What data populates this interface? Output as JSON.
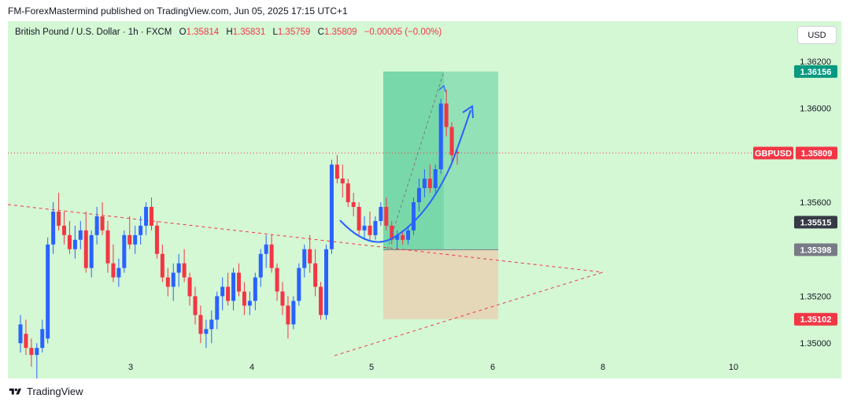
{
  "header": {
    "text": "FM-ForexMastermind published on TradingView.com, Jun 05, 2025 17:15 UTC+1"
  },
  "legend": {
    "symbol": "British Pound / U.S. Dollar · 1h · FXCM",
    "o_label": "O",
    "o": "1.35814",
    "h_label": "H",
    "h": "1.35831",
    "l_label": "L",
    "l": "1.35759",
    "c_label": "C",
    "c": "1.35809",
    "change": "−0.00005 (−0.00%)"
  },
  "currency_button": "USD",
  "price_labels": {
    "target": "1.36156",
    "symbol_tag": "GBPUSD",
    "current": "1.35809",
    "mid": "1.35515",
    "entry": "1.35398",
    "stop": "1.35102"
  },
  "footer": {
    "brand": "TradingView"
  },
  "colors": {
    "background": "#d4f7d4",
    "up": "#2962ff",
    "down": "#f23645",
    "profit_zone": "#7ed9ae",
    "loss_zone": "#e5d4b6",
    "trendline": "#f23645",
    "arrow": "#2962ff"
  },
  "chart_data": {
    "type": "candlestick",
    "symbol": "GBPUSD",
    "timeframe": "1h",
    "x_ticks": [
      "3",
      "4",
      "5",
      "6",
      "8",
      "10"
    ],
    "y_ticks": [
      "1.36200",
      "1.36000",
      "1.35600",
      "1.35200",
      "1.35000"
    ],
    "y_tick_values": [
      1.362,
      1.36,
      1.356,
      1.352,
      1.35
    ],
    "ylim": [
      1.3485,
      1.3637
    ],
    "current_price": 1.35809,
    "position": {
      "entry": 1.35398,
      "target": 1.36156,
      "stop": 1.35102
    },
    "candles_ohlc": [
      [
        1.35,
        1.3512,
        1.3496,
        1.3508
      ],
      [
        1.3504,
        1.351,
        1.3495,
        1.3498
      ],
      [
        1.3498,
        1.3502,
        1.349,
        1.3495
      ],
      [
        1.3495,
        1.35,
        1.3485,
        1.3498
      ],
      [
        1.3498,
        1.351,
        1.3496,
        1.3506
      ],
      [
        1.3502,
        1.3545,
        1.35,
        1.3542
      ],
      [
        1.3542,
        1.356,
        1.3538,
        1.3556
      ],
      [
        1.3556,
        1.3564,
        1.3548,
        1.355
      ],
      [
        1.355,
        1.3556,
        1.3542,
        1.3546
      ],
      [
        1.3546,
        1.3552,
        1.3538,
        1.354
      ],
      [
        1.354,
        1.355,
        1.3536,
        1.3544
      ],
      [
        1.3544,
        1.3552,
        1.354,
        1.3548
      ],
      [
        1.3548,
        1.3556,
        1.353,
        1.3532
      ],
      [
        1.3532,
        1.3548,
        1.3528,
        1.3546
      ],
      [
        1.3546,
        1.3558,
        1.3542,
        1.3554
      ],
      [
        1.3554,
        1.356,
        1.3546,
        1.3548
      ],
      [
        1.3548,
        1.3552,
        1.353,
        1.3534
      ],
      [
        1.3534,
        1.3542,
        1.3526,
        1.3528
      ],
      [
        1.3528,
        1.3536,
        1.3524,
        1.3532
      ],
      [
        1.3532,
        1.3548,
        1.353,
        1.3546
      ],
      [
        1.3546,
        1.3554,
        1.354,
        1.3542
      ],
      [
        1.3542,
        1.355,
        1.3538,
        1.3546
      ],
      [
        1.3546,
        1.3554,
        1.3542,
        1.355
      ],
      [
        1.355,
        1.356,
        1.3546,
        1.3558
      ],
      [
        1.3558,
        1.3562,
        1.3548,
        1.355
      ],
      [
        1.355,
        1.3552,
        1.3536,
        1.3538
      ],
      [
        1.3538,
        1.3542,
        1.3526,
        1.3528
      ],
      [
        1.3528,
        1.3532,
        1.352,
        1.3524
      ],
      [
        1.3524,
        1.3534,
        1.3518,
        1.353
      ],
      [
        1.353,
        1.3538,
        1.3524,
        1.3534
      ],
      [
        1.3534,
        1.354,
        1.3526,
        1.3528
      ],
      [
        1.3528,
        1.353,
        1.3516,
        1.352
      ],
      [
        1.352,
        1.3524,
        1.3508,
        1.3512
      ],
      [
        1.3512,
        1.3516,
        1.35,
        1.3504
      ],
      [
        1.3504,
        1.351,
        1.3498,
        1.3506
      ],
      [
        1.3506,
        1.3514,
        1.35,
        1.351
      ],
      [
        1.351,
        1.3522,
        1.3506,
        1.352
      ],
      [
        1.352,
        1.3528,
        1.3514,
        1.3524
      ],
      [
        1.3524,
        1.353,
        1.3516,
        1.3518
      ],
      [
        1.3518,
        1.3532,
        1.3514,
        1.353
      ],
      [
        1.353,
        1.3534,
        1.352,
        1.3522
      ],
      [
        1.3522,
        1.3526,
        1.3512,
        1.3516
      ],
      [
        1.3516,
        1.3522,
        1.3512,
        1.3518
      ],
      [
        1.3518,
        1.353,
        1.3514,
        1.3528
      ],
      [
        1.3528,
        1.354,
        1.3524,
        1.3538
      ],
      [
        1.3538,
        1.3546,
        1.3532,
        1.3542
      ],
      [
        1.3542,
        1.3546,
        1.353,
        1.3532
      ],
      [
        1.3532,
        1.3534,
        1.3518,
        1.3522
      ],
      [
        1.3522,
        1.3526,
        1.3512,
        1.3516
      ],
      [
        1.3516,
        1.352,
        1.3502,
        1.3508
      ],
      [
        1.3508,
        1.352,
        1.3506,
        1.3518
      ],
      [
        1.3518,
        1.3534,
        1.3516,
        1.3532
      ],
      [
        1.3532,
        1.3542,
        1.3528,
        1.354
      ],
      [
        1.354,
        1.3546,
        1.353,
        1.3534
      ],
      [
        1.3534,
        1.354,
        1.352,
        1.3524
      ],
      [
        1.3524,
        1.3526,
        1.351,
        1.3512
      ],
      [
        1.3512,
        1.3542,
        1.351,
        1.354
      ],
      [
        1.354,
        1.3578,
        1.3538,
        1.3576
      ],
      [
        1.3576,
        1.358,
        1.3568,
        1.357
      ],
      [
        1.357,
        1.3576,
        1.3562,
        1.3568
      ],
      [
        1.3568,
        1.357,
        1.3558,
        1.356
      ],
      [
        1.356,
        1.3564,
        1.3554,
        1.3558
      ],
      [
        1.3558,
        1.356,
        1.3546,
        1.3548
      ],
      [
        1.3548,
        1.3554,
        1.3544,
        1.355
      ],
      [
        1.355,
        1.3556,
        1.3544,
        1.3546
      ],
      [
        1.3546,
        1.3554,
        1.3544,
        1.3552
      ],
      [
        1.3552,
        1.356,
        1.355,
        1.3558
      ],
      [
        1.3558,
        1.3562,
        1.3548,
        1.355
      ],
      [
        1.355,
        1.3552,
        1.3542,
        1.3544
      ],
      [
        1.3544,
        1.3548,
        1.354,
        1.3546
      ],
      [
        1.3546,
        1.3548,
        1.3542,
        1.3544
      ],
      [
        1.3544,
        1.355,
        1.3542,
        1.3548
      ],
      [
        1.3548,
        1.3562,
        1.3546,
        1.356
      ],
      [
        1.356,
        1.357,
        1.3556,
        1.3566
      ],
      [
        1.3566,
        1.3574,
        1.3562,
        1.357
      ],
      [
        1.357,
        1.3576,
        1.3564,
        1.3566
      ],
      [
        1.3566,
        1.3576,
        1.3564,
        1.3574
      ],
      [
        1.3574,
        1.3604,
        1.3572,
        1.3602
      ],
      [
        1.3602,
        1.3608,
        1.3588,
        1.3592
      ],
      [
        1.3592,
        1.3594,
        1.3576,
        1.358
      ],
      [
        1.35814,
        1.35831,
        1.35759,
        1.35809
      ]
    ]
  }
}
